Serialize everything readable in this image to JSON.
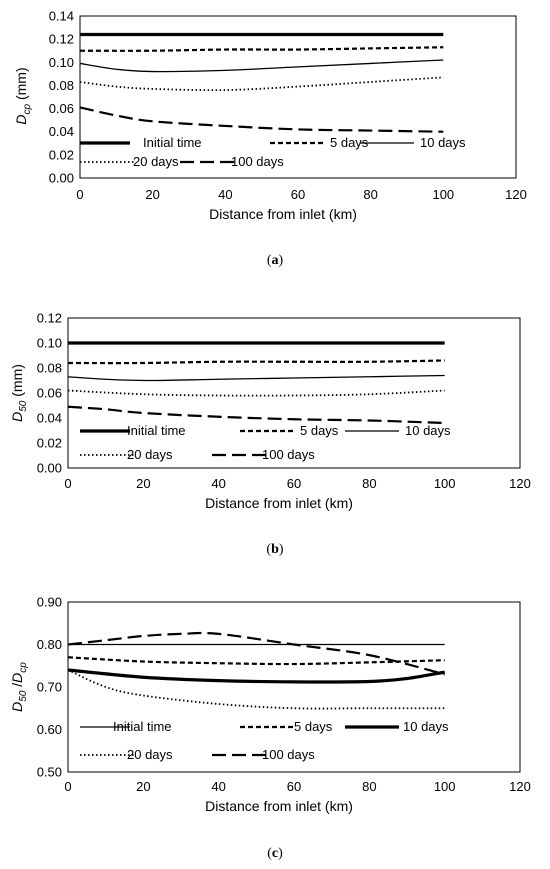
{
  "chart_data": [
    {
      "type": "line",
      "panel_label": "a",
      "xlabel": "Distance from inlet (km)",
      "ylabel_main": "D",
      "ylabel_sub": "cp",
      "ylabel_unit": " (mm)",
      "xlim": [
        0,
        120
      ],
      "xticks": [
        0,
        20,
        40,
        60,
        80,
        100,
        120
      ],
      "ylim": [
        0,
        0.14
      ],
      "yticks": [
        "0.00",
        "0.02",
        "0.04",
        "0.06",
        "0.08",
        "0.10",
        "0.12",
        "0.14"
      ],
      "series": [
        {
          "name": "Initial time",
          "style": "thick",
          "x": [
            0,
            20,
            40,
            60,
            80,
            100
          ],
          "y": [
            0.124,
            0.124,
            0.124,
            0.124,
            0.124,
            0.124
          ]
        },
        {
          "name": "5 days",
          "style": "short-dash",
          "x": [
            0,
            20,
            40,
            60,
            80,
            100
          ],
          "y": [
            0.11,
            0.11,
            0.111,
            0.111,
            0.112,
            0.113
          ]
        },
        {
          "name": "10 days",
          "style": "thin",
          "x": [
            0,
            10,
            20,
            40,
            60,
            80,
            100
          ],
          "y": [
            0.099,
            0.094,
            0.092,
            0.093,
            0.096,
            0.099,
            0.102
          ]
        },
        {
          "name": "20 days",
          "style": "dotted",
          "x": [
            0,
            10,
            20,
            40,
            60,
            80,
            100
          ],
          "y": [
            0.083,
            0.079,
            0.077,
            0.076,
            0.079,
            0.083,
            0.087
          ]
        },
        {
          "name": "100 days",
          "style": "long-dash",
          "x": [
            0,
            10,
            20,
            40,
            60,
            80,
            100
          ],
          "y": [
            0.061,
            0.054,
            0.049,
            0.045,
            0.042,
            0.041,
            0.04
          ]
        }
      ]
    },
    {
      "type": "line",
      "panel_label": "b",
      "xlabel": "Distance from inlet (km)",
      "ylabel_main": "D",
      "ylabel_sub": "50",
      "ylabel_unit": "  (mm)",
      "xlim": [
        0,
        120
      ],
      "xticks": [
        0,
        20,
        40,
        60,
        80,
        100,
        120
      ],
      "ylim": [
        0,
        0.12
      ],
      "yticks": [
        "0.00",
        "0.02",
        "0.04",
        "0.06",
        "0.08",
        "0.10",
        "0.12"
      ],
      "series": [
        {
          "name": "Initial time",
          "style": "thick",
          "x": [
            0,
            20,
            40,
            60,
            80,
            100
          ],
          "y": [
            0.1,
            0.1,
            0.1,
            0.1,
            0.1,
            0.1
          ]
        },
        {
          "name": "5 days",
          "style": "short-dash",
          "x": [
            0,
            20,
            40,
            60,
            80,
            100
          ],
          "y": [
            0.084,
            0.084,
            0.085,
            0.085,
            0.085,
            0.086
          ]
        },
        {
          "name": "10 days",
          "style": "thin",
          "x": [
            0,
            10,
            22,
            40,
            60,
            80,
            100
          ],
          "y": [
            0.073,
            0.071,
            0.07,
            0.071,
            0.072,
            0.073,
            0.074
          ]
        },
        {
          "name": "20 days",
          "style": "dotted",
          "x": [
            0,
            20,
            40,
            60,
            80,
            100
          ],
          "y": [
            0.062,
            0.059,
            0.058,
            0.058,
            0.059,
            0.062
          ]
        },
        {
          "name": "100 days",
          "style": "long-dash",
          "x": [
            0,
            10,
            20,
            40,
            60,
            80,
            100
          ],
          "y": [
            0.049,
            0.047,
            0.044,
            0.041,
            0.039,
            0.038,
            0.036
          ]
        }
      ]
    },
    {
      "type": "line",
      "panel_label": "c",
      "xlabel": "Distance from inlet (km)",
      "ylabel_main": "D",
      "ylabel_sub": "50",
      "ylabel_mid": " /D",
      "ylabel_sub2": "cp",
      "xlim": [
        0,
        120
      ],
      "xticks": [
        0,
        20,
        40,
        60,
        80,
        100,
        120
      ],
      "ylim": [
        0.5,
        0.9
      ],
      "yticks": [
        "0.50",
        "0.60",
        "0.70",
        "0.80",
        "0.90"
      ],
      "series": [
        {
          "name": "Initial time",
          "style": "thin",
          "x": [
            0,
            20,
            40,
            60,
            80,
            100
          ],
          "y": [
            0.8,
            0.8,
            0.8,
            0.8,
            0.8,
            0.8
          ]
        },
        {
          "name": "5 days",
          "style": "short-dash",
          "x": [
            0,
            20,
            40,
            60,
            80,
            100
          ],
          "y": [
            0.77,
            0.76,
            0.756,
            0.754,
            0.758,
            0.763
          ]
        },
        {
          "name": "10 days",
          "style": "thick",
          "x": [
            0,
            20,
            40,
            60,
            80,
            90,
            100
          ],
          "y": [
            0.74,
            0.723,
            0.715,
            0.712,
            0.713,
            0.72,
            0.735
          ]
        },
        {
          "name": "20 days",
          "style": "dotted",
          "x": [
            0,
            10,
            20,
            40,
            60,
            80,
            100
          ],
          "y": [
            0.74,
            0.7,
            0.68,
            0.66,
            0.65,
            0.65,
            0.65
          ]
        },
        {
          "name": "100 days",
          "style": "long-dash",
          "x": [
            0,
            10,
            20,
            30,
            40,
            60,
            80,
            100
          ],
          "y": [
            0.8,
            0.81,
            0.82,
            0.825,
            0.825,
            0.8,
            0.775,
            0.73
          ]
        }
      ]
    }
  ]
}
